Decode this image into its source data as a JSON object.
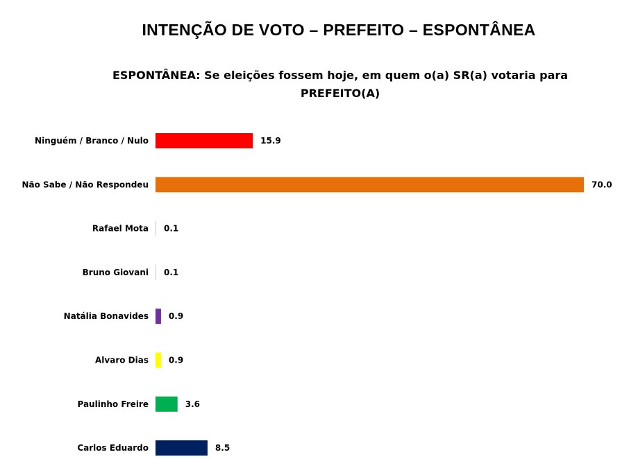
{
  "chart_data": {
    "type": "bar",
    "orientation": "horizontal",
    "title": "INTENÇÃO DE VOTO – PREFEITO – ESPONTÂNEA",
    "subtitle": "ESPONTÂNEA: Se eleições fossem hoje, em quem o(a) SR(a) votaria para PREFEITO(A)",
    "xlabel": "",
    "ylabel": "",
    "xlim": [
      0,
      70
    ],
    "grid": false,
    "legend": "none",
    "categories": [
      "Ninguém / Branco / Nulo",
      "Não Sabe / Não Respondeu",
      "Rafael Mota",
      "Bruno Giovani",
      "Natália Bonavides",
      "Alvaro Dias",
      "Paulinho Freire",
      "Carlos Eduardo"
    ],
    "values": [
      15.9,
      70.0,
      0.1,
      0.1,
      0.9,
      0.9,
      3.6,
      8.5
    ],
    "value_labels": [
      "15.9",
      "70.0",
      "0.1",
      "0.1",
      "0.9",
      "0.9",
      "3.6",
      "8.5"
    ],
    "colors": [
      "#ff0000",
      "#e8700a",
      "#c9c9c9",
      "#c9c9c9",
      "#7030a0",
      "#ffff00",
      "#00b050",
      "#002060"
    ]
  }
}
